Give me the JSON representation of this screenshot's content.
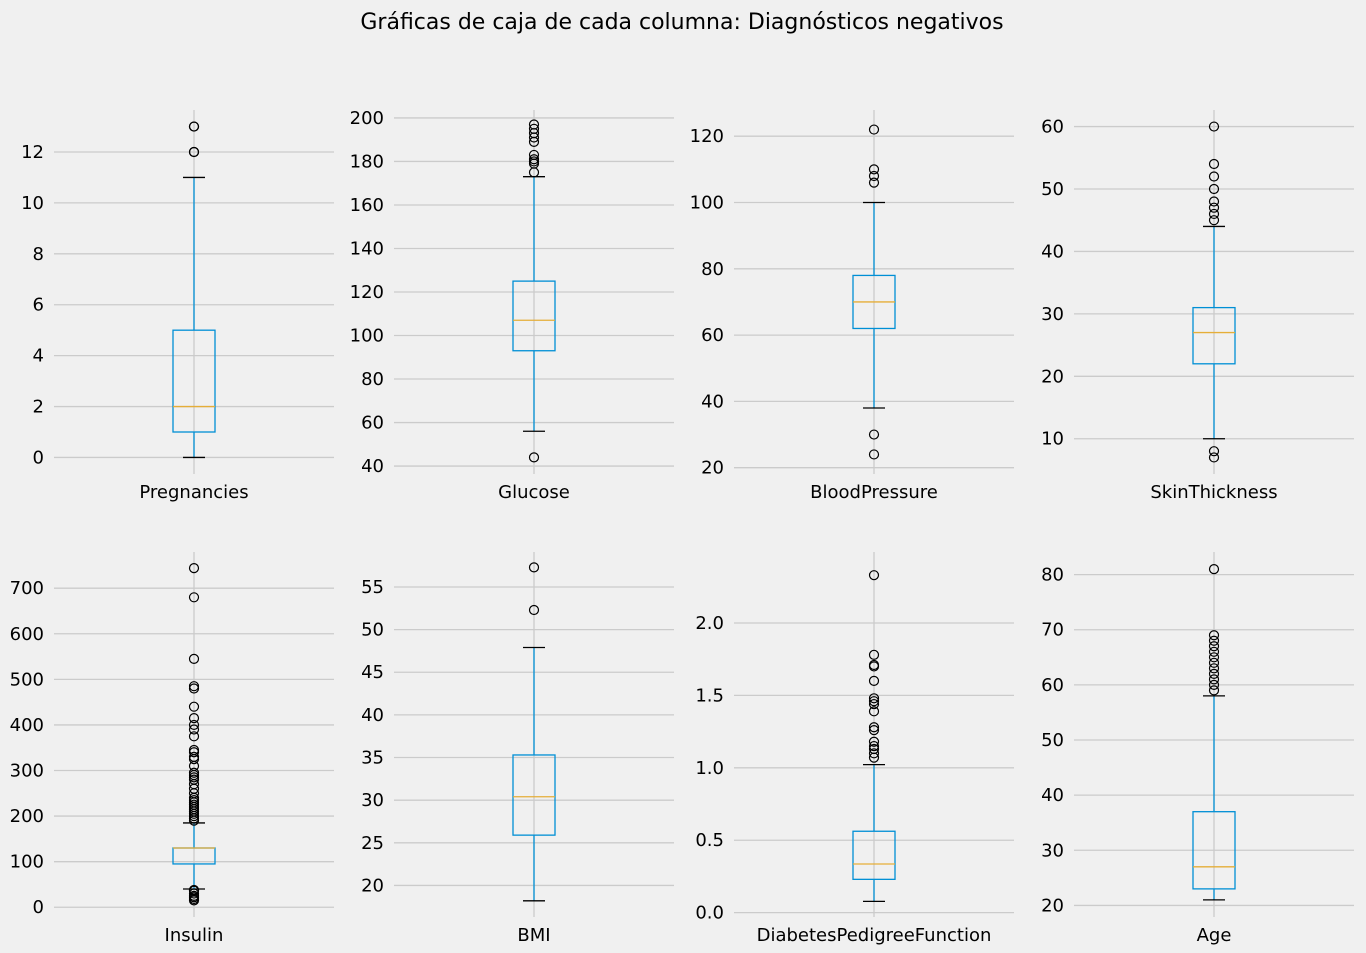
{
  "title": "Gráficas de caja de cada columna: Diagnósticos negativos",
  "colors": {
    "background": "#f0f0f0",
    "grid": "#cbcbcb",
    "box": "#008fd5",
    "median": "#e5ae38",
    "outlier": "#000000",
    "text": "#000000"
  },
  "chart_data": [
    {
      "type": "box",
      "xlabel": "Pregnancies",
      "ylim": [
        -0.65,
        13.65
      ],
      "yticks": [
        0,
        2,
        4,
        6,
        8,
        10,
        12
      ],
      "ytick_labels": [
        "0",
        "2",
        "4",
        "6",
        "8",
        "10",
        "12"
      ],
      "whisker_low": 0,
      "q1": 1,
      "median": 2,
      "q3": 5,
      "whisker_high": 11,
      "outliers": [
        12,
        12,
        13,
        13
      ]
    },
    {
      "type": "box",
      "xlabel": "Glucose",
      "ylim": [
        36.35,
        203.65
      ],
      "yticks": [
        40,
        60,
        80,
        100,
        120,
        140,
        160,
        180,
        200
      ],
      "ytick_labels": [
        "40",
        "60",
        "80",
        "100",
        "120",
        "140",
        "160",
        "180",
        "200"
      ],
      "whisker_low": 56,
      "q1": 93,
      "median": 107,
      "q3": 125,
      "whisker_high": 173,
      "outliers": [
        44,
        175,
        179,
        180,
        181,
        183,
        189,
        191,
        193,
        195,
        197
      ]
    },
    {
      "type": "box",
      "xlabel": "BloodPressure",
      "ylim": [
        18.1,
        127.9
      ],
      "yticks": [
        20,
        40,
        60,
        80,
        100,
        120
      ],
      "ytick_labels": [
        "20",
        "40",
        "60",
        "80",
        "100",
        "120"
      ],
      "whisker_low": 38,
      "q1": 62,
      "median": 70,
      "q3": 78,
      "whisker_high": 100,
      "outliers": [
        24,
        30,
        106,
        108,
        110,
        122
      ]
    },
    {
      "type": "box",
      "xlabel": "SkinThickness",
      "ylim": [
        4.35,
        62.65
      ],
      "yticks": [
        10,
        20,
        30,
        40,
        50,
        60
      ],
      "ytick_labels": [
        "10",
        "20",
        "30",
        "40",
        "50",
        "60"
      ],
      "whisker_low": 10,
      "q1": 22,
      "median": 27,
      "q3": 31,
      "whisker_high": 44,
      "outliers": [
        7,
        8,
        45,
        46,
        47,
        48,
        50,
        52,
        54,
        60
      ]
    },
    {
      "type": "box",
      "xlabel": "Insulin",
      "ylim": [
        -21.4,
        779.4
      ],
      "yticks": [
        0,
        100,
        200,
        300,
        400,
        500,
        600,
        700
      ],
      "ytick_labels": [
        "0",
        "100",
        "200",
        "300",
        "400",
        "500",
        "600",
        "700"
      ],
      "whisker_low": 40,
      "q1": 95,
      "median": 130,
      "q3": 130,
      "whisker_high": 185,
      "outliers": [
        15,
        18,
        22,
        25,
        30,
        36,
        38,
        190,
        195,
        200,
        205,
        210,
        215,
        220,
        225,
        230,
        235,
        240,
        250,
        260,
        270,
        280,
        285,
        290,
        295,
        310,
        325,
        330,
        340,
        345,
        375,
        390,
        400,
        415,
        440,
        480,
        485,
        545,
        680,
        744
      ]
    },
    {
      "type": "box",
      "xlabel": "BMI",
      "ylim": [
        16.3,
        59.1
      ],
      "yticks": [
        20,
        25,
        30,
        35,
        40,
        45,
        50,
        55
      ],
      "ytick_labels": [
        "20",
        "25",
        "30",
        "35",
        "40",
        "45",
        "50",
        "55"
      ],
      "whisker_low": 18.2,
      "q1": 25.9,
      "median": 30.4,
      "q3": 35.3,
      "whisker_high": 47.9,
      "outliers": [
        52.3,
        57.3
      ]
    },
    {
      "type": "box",
      "xlabel": "DiabetesPedigreeFunction",
      "ylim": [
        -0.03,
        2.49
      ],
      "yticks": [
        0.0,
        0.5,
        1.0,
        1.5,
        2.0
      ],
      "ytick_labels": [
        "0.0",
        "0.5",
        "1.0",
        "1.5",
        "2.0"
      ],
      "whisker_low": 0.078,
      "q1": 0.23,
      "median": 0.336,
      "q3": 0.562,
      "whisker_high": 1.022,
      "outliers": [
        1.07,
        1.1,
        1.13,
        1.15,
        1.18,
        1.26,
        1.28,
        1.39,
        1.44,
        1.46,
        1.48,
        1.6,
        1.7,
        1.71,
        1.78,
        2.33
      ]
    },
    {
      "type": "box",
      "xlabel": "Age",
      "ylim": [
        17.9,
        84.1
      ],
      "yticks": [
        20,
        30,
        40,
        50,
        60,
        70,
        80
      ],
      "ytick_labels": [
        "20",
        "30",
        "40",
        "50",
        "60",
        "70",
        "80"
      ],
      "whisker_low": 21,
      "q1": 23,
      "median": 27,
      "q3": 37,
      "whisker_high": 58,
      "outliers": [
        59,
        60,
        61,
        62,
        63,
        64,
        65,
        66,
        67,
        68,
        69,
        81
      ]
    }
  ]
}
